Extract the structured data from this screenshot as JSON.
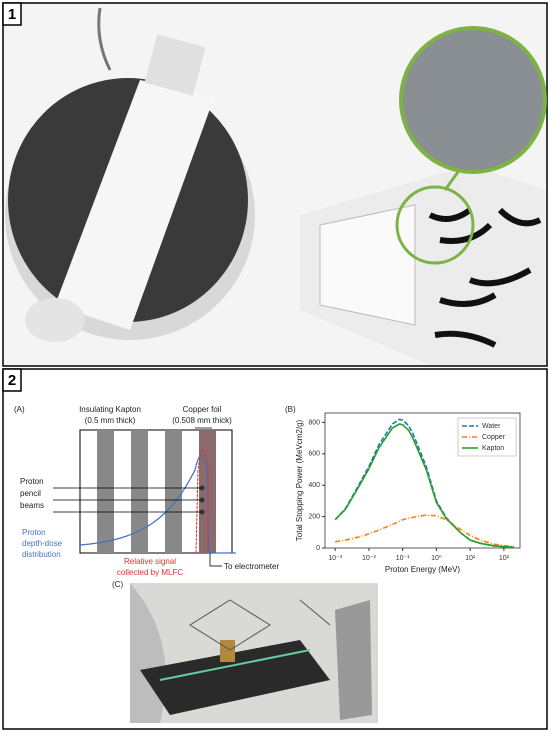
{
  "panel_labels": [
    "1",
    "2"
  ],
  "diagram_a": {
    "label": "(A)",
    "kapton_title": "Insulating Kapton",
    "kapton_thickness": "(0.5 mm thick)",
    "copper_title": "Copper foil",
    "copper_thickness": "(0.508 mm thick)",
    "beams": [
      "Proton",
      "pencil",
      "beams"
    ],
    "depth_dose": [
      "Proton",
      "depth-dose",
      "distribution"
    ],
    "signal": [
      "Relative signal",
      "collected by MLFC"
    ],
    "electrometer": "To electrometer"
  },
  "panel_b_label": "(B)",
  "panel_c_label": "(C)",
  "chart_data": {
    "type": "line",
    "x_label": "Proton Energy (MeV)",
    "y_label": "Total Stopping Power (MeVcm2/g)",
    "x": [
      0.001,
      0.002,
      0.005,
      0.01,
      0.02,
      0.05,
      0.08,
      0.1,
      0.15,
      0.2,
      0.5,
      1,
      2,
      5,
      10,
      20,
      50,
      100,
      200
    ],
    "series": [
      {
        "name": "Water",
        "color": "#1f77b4",
        "linestyle": "dashed",
        "values": [
          180,
          250,
          400,
          520,
          660,
          790,
          820,
          815,
          780,
          730,
          520,
          300,
          190,
          100,
          50,
          30,
          14,
          8,
          5
        ]
      },
      {
        "name": "Copper",
        "color": "#ff7f0e",
        "linestyle": "dashdot",
        "values": [
          40,
          50,
          70,
          90,
          115,
          150,
          170,
          180,
          190,
          195,
          210,
          205,
          180,
          120,
          80,
          50,
          25,
          15,
          8
        ]
      },
      {
        "name": "Kapton",
        "color": "#2ca02c",
        "linestyle": "solid",
        "values": [
          180,
          245,
          390,
          505,
          640,
          765,
          790,
          785,
          750,
          700,
          500,
          290,
          185,
          100,
          50,
          30,
          14,
          8,
          5
        ]
      }
    ],
    "xscale": "log",
    "xlim": [
      0.0005,
      300
    ],
    "xticks": [
      {
        "value": 0.001,
        "label": "10⁻³"
      },
      {
        "value": 0.01,
        "label": "10⁻²"
      },
      {
        "value": 0.1,
        "label": "10⁻¹"
      },
      {
        "value": 1,
        "label": "10⁰"
      },
      {
        "value": 10,
        "label": "10¹"
      },
      {
        "value": 100,
        "label": "10²"
      }
    ],
    "ylim": [
      0,
      860
    ],
    "yticks": [
      0,
      200,
      400,
      600,
      800
    ],
    "grid": false,
    "legend": "upper right"
  }
}
